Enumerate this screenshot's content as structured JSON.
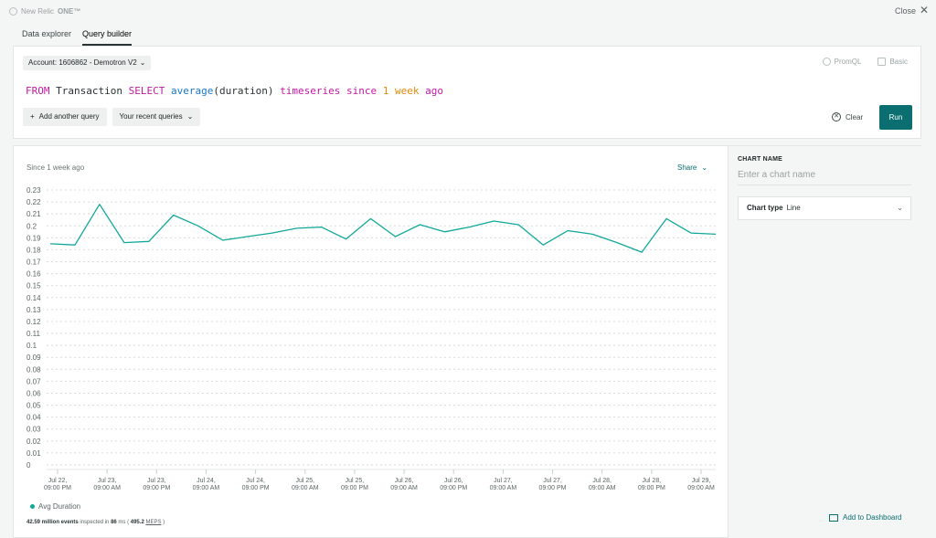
{
  "app": {
    "brand": "New Relic",
    "brand_one": "ONE™",
    "close_label": "Close"
  },
  "tabs": [
    {
      "label": "Data explorer",
      "active": false
    },
    {
      "label": "Query builder",
      "active": true
    }
  ],
  "query": {
    "account": "Account: 1606862 - Demotron V2",
    "promql_label": "PromQL",
    "basic_label": "Basic",
    "nrql_tokens": [
      {
        "text": "FROM",
        "kind": "pink"
      },
      {
        "text": " Transaction ",
        "kind": "dark"
      },
      {
        "text": "SELECT",
        "kind": "pink"
      },
      {
        "text": " ",
        "kind": "dark"
      },
      {
        "text": "average",
        "kind": "blue"
      },
      {
        "text": "(duration) ",
        "kind": "dark"
      },
      {
        "text": "timeseries",
        "kind": "pink"
      },
      {
        "text": " ",
        "kind": "dark"
      },
      {
        "text": "since",
        "kind": "pink"
      },
      {
        "text": " ",
        "kind": "dark"
      },
      {
        "text": "1",
        "kind": "orange"
      },
      {
        "text": " ",
        "kind": "dark"
      },
      {
        "text": "week",
        "kind": "orange"
      },
      {
        "text": " ",
        "kind": "dark"
      },
      {
        "text": "ago",
        "kind": "pink"
      }
    ],
    "add_query_label": "Add another query",
    "recent_label": "Your recent queries",
    "clear_label": "Clear",
    "run_label": "Run"
  },
  "chart": {
    "subtitle": "Since 1 week ago",
    "share_label": "Share",
    "legend": "Avg Duration",
    "stats": {
      "events": "42.59 million events",
      "inspected_in": " inspected in ",
      "ms": "86",
      "ms_unit": " ms (",
      "rate": " 495.2 ",
      "meps": "MEPS",
      "close_paren": " )"
    }
  },
  "chart_data": {
    "type": "line",
    "series": [
      {
        "name": "Avg Duration",
        "color": "#11a899",
        "values": [
          0.185,
          0.184,
          0.218,
          0.186,
          0.187,
          0.209,
          0.2,
          0.188,
          0.191,
          0.194,
          0.198,
          0.199,
          0.189,
          0.206,
          0.191,
          0.201,
          0.195,
          0.199,
          0.204,
          0.201,
          0.184,
          0.196,
          0.193,
          0.186,
          0.178,
          0.206,
          0.194,
          0.193
        ]
      }
    ],
    "x_tick_labels": [
      [
        "Jul 22,",
        "09:00 PM"
      ],
      [
        "Jul 23,",
        "09:00 AM"
      ],
      [
        "Jul 23,",
        "09:00 PM"
      ],
      [
        "Jul 24,",
        "09:00 AM"
      ],
      [
        "Jul 24,",
        "09:00 PM"
      ],
      [
        "Jul 25,",
        "09:00 AM"
      ],
      [
        "Jul 25,",
        "09:00 PM"
      ],
      [
        "Jul 26,",
        "09:00 AM"
      ],
      [
        "Jul 26,",
        "09:00 PM"
      ],
      [
        "Jul 27,",
        "09:00 AM"
      ],
      [
        "Jul 27,",
        "09:00 PM"
      ],
      [
        "Jul 28,",
        "09:00 AM"
      ],
      [
        "Jul 28,",
        "09:00 PM"
      ],
      [
        "Jul 29,",
        "09:00 AM"
      ]
    ],
    "y_ticks": [
      0,
      0.01,
      0.02,
      0.03,
      0.04,
      0.05,
      0.06,
      0.07,
      0.08,
      0.09,
      0.1,
      0.11,
      0.12,
      0.13,
      0.14,
      0.15,
      0.16,
      0.17,
      0.18,
      0.19,
      0.2,
      0.21,
      0.22,
      0.23
    ],
    "ylim": [
      0,
      0.23
    ],
    "grid": true
  },
  "side": {
    "chart_name_label": "CHART NAME",
    "chart_name_placeholder": "Enter a chart name",
    "chart_type_label": "Chart type",
    "chart_type_value": "Line",
    "add_dashboard_label": "Add to Dashboard"
  }
}
